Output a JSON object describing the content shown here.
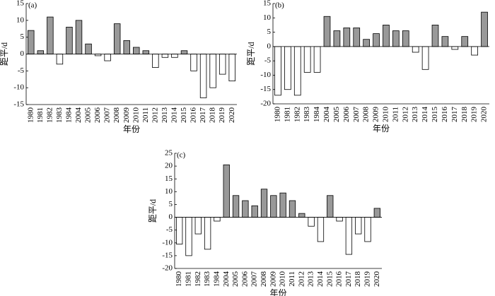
{
  "chart_data": [
    {
      "type": "bar",
      "panel_label": "(a)",
      "y_label": "距平/d",
      "x_label": "年份",
      "categories": [
        "1980",
        "1981",
        "1982",
        "1983",
        "1984",
        "2004",
        "2005",
        "2006",
        "2007",
        "2008",
        "2009",
        "2010",
        "2011",
        "2012",
        "2013",
        "2014",
        "2015",
        "2016",
        "2017",
        "2018",
        "2019",
        "2020"
      ],
      "values": [
        7,
        1,
        11,
        -3,
        8,
        10,
        3,
        -0.5,
        -2,
        9,
        4,
        2,
        1,
        -4,
        -1,
        -1,
        1,
        -5,
        -13,
        -10,
        -6,
        -8
      ],
      "positive_color": "#999999",
      "negative_color": "#ffffff",
      "ylim": [
        -15,
        15
      ],
      "yticks": [
        -15,
        -10,
        -5,
        0,
        5,
        10,
        15
      ]
    },
    {
      "type": "bar",
      "panel_label": "(b)",
      "y_label": "距平/d",
      "x_label": "年份",
      "categories": [
        "1980",
        "1981",
        "1982",
        "1983",
        "1984",
        "2004",
        "2005",
        "2006",
        "2007",
        "2008",
        "2009",
        "2010",
        "2011",
        "2012",
        "2013",
        "2014",
        "2015",
        "2016",
        "2017",
        "2018",
        "2019",
        "2020"
      ],
      "values": [
        -17,
        -15,
        -17,
        -9,
        -9,
        10.5,
        5.5,
        6.5,
        6.5,
        2.5,
        4.5,
        7.5,
        5.5,
        5.5,
        -2,
        -8,
        7.5,
        3.5,
        -1,
        3.5,
        -3,
        12
      ],
      "positive_color": "#999999",
      "negative_color": "#ffffff",
      "ylim": [
        -20,
        15
      ],
      "yticks": [
        -20,
        -15,
        -10,
        -5,
        0,
        5,
        10,
        15
      ]
    },
    {
      "type": "bar",
      "panel_label": "(c)",
      "y_label": "距平/d",
      "x_label": "年份",
      "categories": [
        "1980",
        "1981",
        "1982",
        "1983",
        "1984",
        "2004",
        "2005",
        "2006",
        "2007",
        "2008",
        "2009",
        "2010",
        "2011",
        "2012",
        "2013",
        "2014",
        "2015",
        "2016",
        "2017",
        "2018",
        "2019",
        "2020"
      ],
      "values": [
        -10.5,
        -15,
        -6.5,
        -12.5,
        -1.5,
        20.5,
        8.5,
        6.5,
        4.5,
        11,
        8.5,
        9.5,
        6.5,
        1.5,
        -3.5,
        -9.5,
        8.5,
        -1.5,
        -14.5,
        -6.5,
        -9.5,
        3.5
      ],
      "positive_color": "#999999",
      "negative_color": "#ffffff",
      "ylim": [
        -20,
        25
      ],
      "yticks": [
        -20,
        -15,
        -10,
        -5,
        0,
        5,
        10,
        15,
        20,
        25
      ]
    }
  ]
}
